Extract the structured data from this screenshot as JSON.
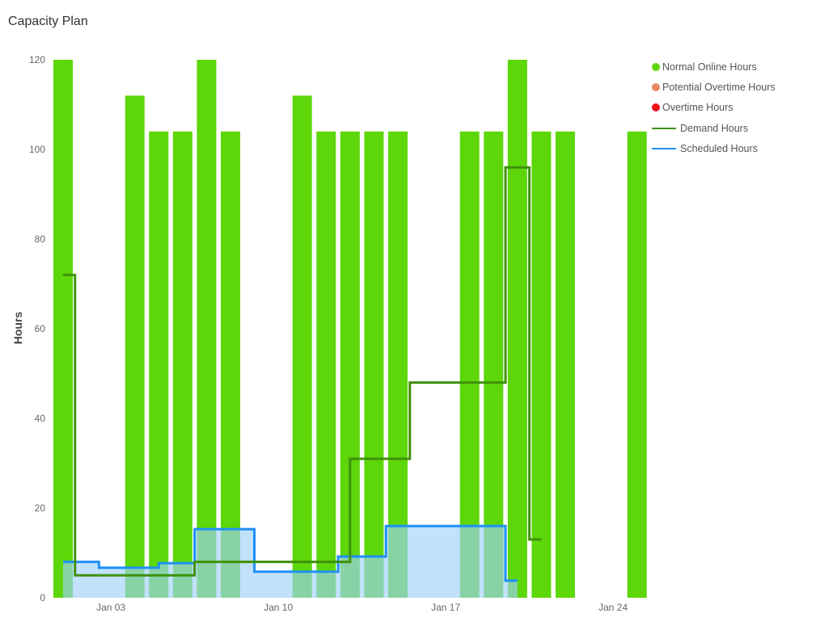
{
  "title": "Capacity Plan",
  "chart_data": {
    "type": "bar",
    "title": "Capacity Plan",
    "xlabel": "",
    "ylabel": "Hours",
    "ylim": [
      0,
      120
    ],
    "yticks": [
      0,
      20,
      40,
      60,
      80,
      100,
      120
    ],
    "xticks": [
      {
        "label": "Jan 03",
        "day": 3
      },
      {
        "label": "Jan 10",
        "day": 10
      },
      {
        "label": "Jan 17",
        "day": 17
      },
      {
        "label": "Jan 24",
        "day": 24
      }
    ],
    "grid": false,
    "legend_position": "right",
    "categories": [
      "Jan 01",
      "Jan 04",
      "Jan 05",
      "Jan 06",
      "Jan 07",
      "Jan 08",
      "Jan 11",
      "Jan 12",
      "Jan 13",
      "Jan 14",
      "Jan 15",
      "Jan 18",
      "Jan 19",
      "Jan 20",
      "Jan 21",
      "Jan 22",
      "Jan 25"
    ],
    "series": [
      {
        "name": "Normal Online Hours",
        "type": "bar",
        "color": "#5dd60a",
        "days": [
          1,
          4,
          5,
          6,
          7,
          8,
          11,
          12,
          13,
          14,
          15,
          18,
          19,
          20,
          21,
          22,
          25
        ],
        "values": [
          120,
          112,
          104,
          104,
          120,
          104,
          112,
          104,
          104,
          104,
          104,
          104,
          104,
          120,
          104,
          104,
          104
        ]
      },
      {
        "name": "Potential Overtime Hours",
        "type": "bar",
        "color": "#e98a66",
        "values": []
      },
      {
        "name": "Overtime Hours",
        "type": "bar",
        "color": "#ef0f1a",
        "values": []
      },
      {
        "name": "Demand Hours",
        "type": "step-line",
        "color": "#3f9109",
        "steps": [
          {
            "from": 1.0,
            "to": 1.5,
            "value": 72
          },
          {
            "from": 1.5,
            "to": 6.5,
            "value": 5
          },
          {
            "from": 6.5,
            "to": 13.0,
            "value": 8
          },
          {
            "from": 13.0,
            "to": 15.5,
            "value": 31
          },
          {
            "from": 15.5,
            "to": 19.5,
            "value": 48
          },
          {
            "from": 19.5,
            "to": 20.5,
            "value": 96
          },
          {
            "from": 20.5,
            "to": 21.0,
            "value": 13
          }
        ]
      },
      {
        "name": "Scheduled Hours",
        "type": "step-area",
        "color": "#1e90f5",
        "fill": "#a0d1fb",
        "steps": [
          {
            "from": 1.0,
            "to": 2.5,
            "value": 8
          },
          {
            "from": 2.5,
            "to": 5.0,
            "value": 6.7
          },
          {
            "from": 5.0,
            "to": 6.5,
            "value": 7.7
          },
          {
            "from": 6.5,
            "to": 9.0,
            "value": 15.3
          },
          {
            "from": 9.0,
            "to": 12.5,
            "value": 5.8
          },
          {
            "from": 12.5,
            "to": 14.5,
            "value": 9.2
          },
          {
            "from": 14.5,
            "to": 19.5,
            "value": 16
          },
          {
            "from": 19.5,
            "to": 20.0,
            "value": 3.8
          }
        ]
      }
    ]
  },
  "legend": [
    {
      "label": "Normal Online Hours",
      "kind": "dot",
      "color": "#5dd60a"
    },
    {
      "label": "Potential Overtime Hours",
      "kind": "dot",
      "color": "#e98a66"
    },
    {
      "label": "Overtime Hours",
      "kind": "dot",
      "color": "#ef0f1a"
    },
    {
      "label": "Demand Hours",
      "kind": "line",
      "color": "#3f9109"
    },
    {
      "label": "Scheduled Hours",
      "kind": "line",
      "color": "#1e90f5"
    }
  ]
}
